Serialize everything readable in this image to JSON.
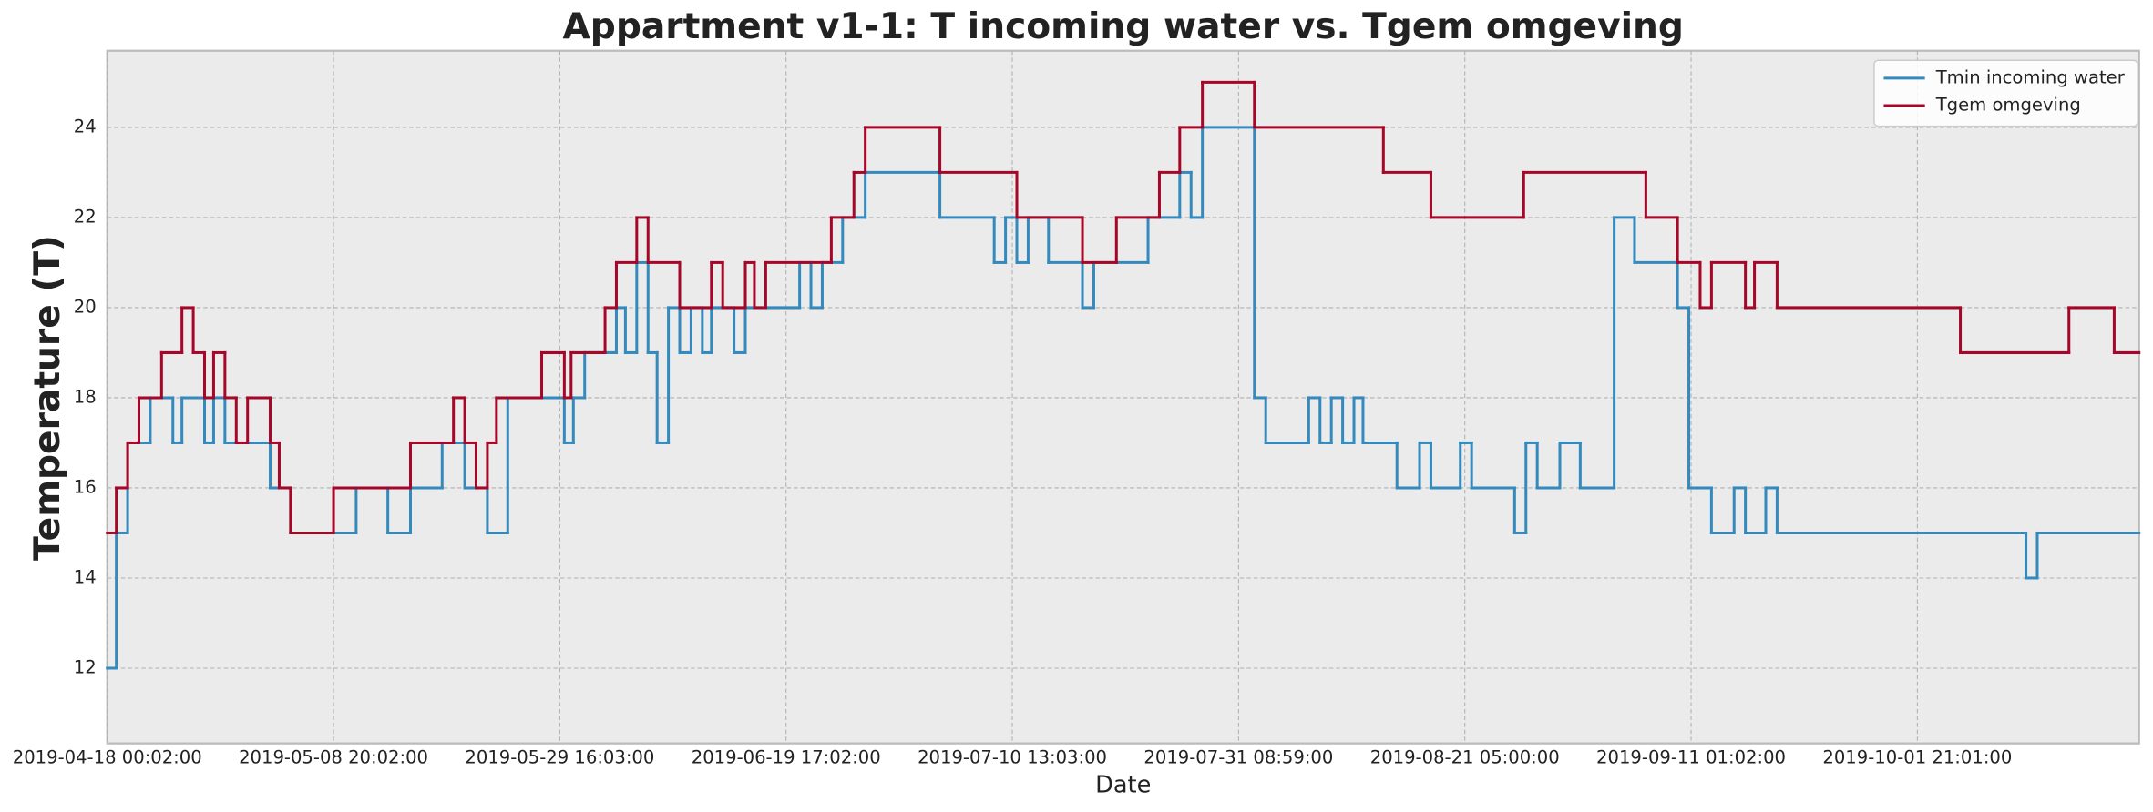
{
  "chart_data": {
    "type": "line",
    "drawstyle": "steps-post",
    "title": "Appartment v1-1: T incoming water vs. Tgem omgeving",
    "xlabel": "Date",
    "ylabel": "Temperature (T)",
    "xlim": [
      0,
      898
    ],
    "xticks": [
      {
        "value": 0,
        "label": "2019-04-18 00:02:00"
      },
      {
        "value": 100,
        "label": "2019-05-08 20:02:00"
      },
      {
        "value": 200,
        "label": "2019-05-29 16:03:00"
      },
      {
        "value": 300,
        "label": "2019-06-19 17:02:00"
      },
      {
        "value": 400,
        "label": "2019-07-10 13:03:00"
      },
      {
        "value": 500,
        "label": "2019-07-31 08:59:00"
      },
      {
        "value": 600,
        "label": "2019-08-21 05:00:00"
      },
      {
        "value": 700,
        "label": "2019-09-11 01:02:00"
      },
      {
        "value": 800,
        "label": "2019-10-01 21:01:00"
      }
    ],
    "ylim": [
      10.33,
      25.7
    ],
    "yticks": [
      12,
      14,
      16,
      18,
      20,
      22,
      24
    ],
    "grid": true,
    "legend": "upper-right",
    "series": [
      {
        "name": "Tmin incoming water",
        "color": "#348abd",
        "x": [
          0,
          4,
          9,
          19,
          29,
          33,
          43,
          47,
          52,
          72,
          81,
          110,
          124,
          134,
          148,
          158,
          168,
          177,
          202,
          206,
          211,
          225,
          229,
          234,
          239,
          243,
          248,
          253,
          258,
          263,
          267,
          277,
          282,
          306,
          311,
          316,
          325,
          335,
          368,
          392,
          397,
          402,
          407,
          416,
          431,
          436,
          460,
          474,
          479,
          484,
          507,
          512,
          531,
          536,
          541,
          546,
          551,
          555,
          570,
          580,
          585,
          598,
          603,
          622,
          627,
          632,
          642,
          651,
          666,
          675,
          694,
          699,
          709,
          719,
          724,
          733,
          738,
          848,
          853
        ],
        "values": [
          12,
          15,
          17,
          18,
          17,
          18,
          17,
          18,
          17,
          16,
          15,
          16,
          15,
          16,
          17,
          16,
          15,
          18,
          17,
          18,
          19,
          20,
          19,
          21,
          19,
          17,
          20,
          19,
          20,
          19,
          20,
          19,
          20,
          21,
          20,
          21,
          22,
          23,
          22,
          21,
          22,
          21,
          22,
          21,
          20,
          21,
          22,
          23,
          22,
          24,
          18,
          17,
          18,
          17,
          18,
          17,
          18,
          17,
          16,
          17,
          16,
          17,
          16,
          15,
          17,
          16,
          17,
          16,
          22,
          21,
          20,
          16,
          15,
          16,
          15,
          16,
          15,
          14,
          15
        ]
      },
      {
        "name": "Tgem omgeving",
        "color": "#a60628",
        "x": [
          0,
          4,
          9,
          14,
          24,
          33,
          38,
          43,
          47,
          52,
          57,
          62,
          72,
          76,
          81,
          100,
          134,
          153,
          158,
          163,
          168,
          172,
          192,
          202,
          205,
          220,
          225,
          234,
          239,
          253,
          267,
          272,
          282,
          286,
          291,
          320,
          330,
          335,
          368,
          402,
          431,
          446,
          465,
          474,
          484,
          507,
          564,
          585,
          626,
          680,
          694,
          704,
          709,
          724,
          728,
          738,
          819,
          867,
          887
        ],
        "values": [
          15,
          16,
          17,
          18,
          19,
          20,
          19,
          18,
          19,
          18,
          17,
          18,
          17,
          16,
          15,
          16,
          17,
          18,
          17,
          16,
          17,
          18,
          19,
          18,
          19,
          20,
          21,
          22,
          21,
          20,
          21,
          20,
          21,
          20,
          21,
          22,
          23,
          24,
          23,
          22,
          21,
          22,
          23,
          24,
          25,
          24,
          23,
          22,
          23,
          22,
          21,
          20,
          21,
          20,
          21,
          20,
          19,
          20,
          19
        ]
      }
    ]
  }
}
